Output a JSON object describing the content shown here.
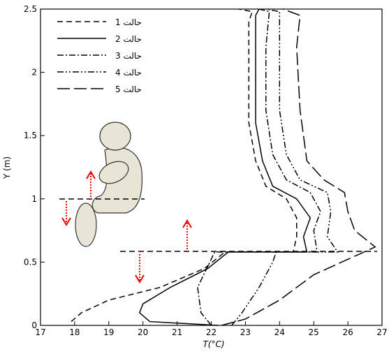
{
  "chart_data": {
    "type": "line",
    "xlabel": "T(°C)",
    "ylabel": "Y (m)",
    "xlim": [
      17,
      27
    ],
    "ylim": [
      0,
      2.5
    ],
    "xticks": [
      17,
      18,
      19,
      20,
      21,
      22,
      23,
      24,
      25,
      26,
      27
    ],
    "yticks": [
      0,
      0.5,
      1,
      1.5,
      2,
      2.5
    ],
    "legend": "top-left",
    "series": [
      {
        "name": "حالت 1",
        "color": "#000000",
        "dash": "8,5",
        "x": [
          17.9,
          18.2,
          19,
          20.5,
          21.8,
          22.4,
          24.4,
          24.5,
          24.5,
          24.2,
          23.6,
          23.3,
          23.1,
          23.1,
          23.1,
          23.2,
          22.8
        ],
        "values": [
          0.03,
          0.1,
          0.2,
          0.3,
          0.45,
          0.58,
          0.58,
          0.7,
          0.85,
          1.0,
          1.1,
          1.3,
          1.6,
          2.0,
          2.4,
          2.48,
          2.5
        ]
      },
      {
        "name": "حالت 2",
        "color": "#000000",
        "dash": "none",
        "x": [
          22.2,
          20.2,
          19.9,
          20.0,
          20.8,
          21.9,
          22.5,
          24.8,
          24.7,
          24.9,
          24.5,
          23.8,
          23.5,
          23.3,
          23.3,
          23.3,
          23.4
        ],
        "values": [
          0.0,
          0.03,
          0.1,
          0.17,
          0.3,
          0.45,
          0.58,
          0.58,
          0.7,
          0.85,
          1.0,
          1.1,
          1.3,
          1.6,
          2.0,
          2.45,
          2.5
        ]
      },
      {
        "name": "حالت 3",
        "color": "#000000",
        "dash": "9,3,2,3",
        "x": [
          22.0,
          21.7,
          21.6,
          22.1,
          25.1,
          25.0,
          25.2,
          24.9,
          24.2,
          23.8,
          23.6,
          23.6,
          23.7,
          23.4
        ],
        "values": [
          0.0,
          0.1,
          0.3,
          0.58,
          0.58,
          0.75,
          0.9,
          1.05,
          1.15,
          1.35,
          1.7,
          2.2,
          2.48,
          2.5
        ]
      },
      {
        "name": "حالت 4",
        "color": "#000000",
        "dash": "9,3,2,3,2,3",
        "x": [
          22.6,
          22.9,
          23.4,
          23.8,
          23.9,
          25.7,
          25.4,
          25.5,
          25.4,
          24.6,
          24.2,
          24.0,
          24.0,
          24.0,
          23.6
        ],
        "values": [
          0.0,
          0.1,
          0.3,
          0.5,
          0.58,
          0.58,
          0.7,
          0.9,
          1.05,
          1.15,
          1.35,
          1.7,
          2.2,
          2.48,
          2.5
        ]
      },
      {
        "name": "حالت 5",
        "color": "#000000",
        "dash": "18,6",
        "x": [
          22.3,
          23.0,
          24.0,
          25.0,
          26.8,
          26.2,
          26.0,
          25.9,
          25.3,
          24.8,
          24.6,
          24.5,
          24.6,
          24.1
        ],
        "values": [
          0.0,
          0.05,
          0.2,
          0.4,
          0.62,
          0.75,
          0.9,
          1.05,
          1.15,
          1.3,
          1.7,
          2.2,
          2.45,
          2.5
        ]
      }
    ]
  }
}
